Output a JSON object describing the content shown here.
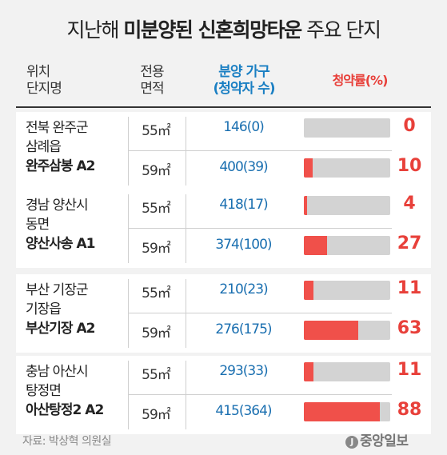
{
  "title": {
    "plain": "지난해",
    "bold": "미분양된 신혼희망타운",
    "tail": "주요 단지"
  },
  "headers": {
    "location_l1": "위치",
    "location_l2": "단지명",
    "area_l1": "전용",
    "area_l2": "면적",
    "units_l1": "분양 가구",
    "units_l2": "(청약자 수)",
    "rate": "청약률(%)"
  },
  "chart_data": {
    "type": "bar",
    "rate_axis_max": 100,
    "complexes": [
      {
        "region": "전북 완주군",
        "district": "삼례읍",
        "name": "완주삼봉 A2",
        "rows": [
          {
            "area": "55㎡",
            "units": "146(0)",
            "rate": 0
          },
          {
            "area": "59㎡",
            "units": "400(39)",
            "rate": 10
          }
        ]
      },
      {
        "region": "경남 양산시",
        "district": "동면",
        "name": "양산사송 A1",
        "rows": [
          {
            "area": "55㎡",
            "units": "418(17)",
            "rate": 4
          },
          {
            "area": "59㎡",
            "units": "374(100)",
            "rate": 27
          }
        ]
      },
      {
        "region": "부산 기장군",
        "district": "기장읍",
        "name": "부산기장 A2",
        "rows": [
          {
            "area": "55㎡",
            "units": "210(23)",
            "rate": 11
          },
          {
            "area": "59㎡",
            "units": "276(175)",
            "rate": 63
          }
        ]
      },
      {
        "region": "충남 아산시",
        "district": "탕정면",
        "name": "아산탕정2 A2",
        "rows": [
          {
            "area": "55㎡",
            "units": "293(33)",
            "rate": 11
          },
          {
            "area": "59㎡",
            "units": "415(364)",
            "rate": 88
          }
        ]
      }
    ]
  },
  "source": "자료: 박상혁 의원실",
  "logo": {
    "mark": "J",
    "text": "중앙일보"
  },
  "colors": {
    "units_text": "#1a6fb0",
    "rate_text": "#e8403a",
    "bar_fill": "#f0504a",
    "bar_track": "#d3d3d3"
  }
}
